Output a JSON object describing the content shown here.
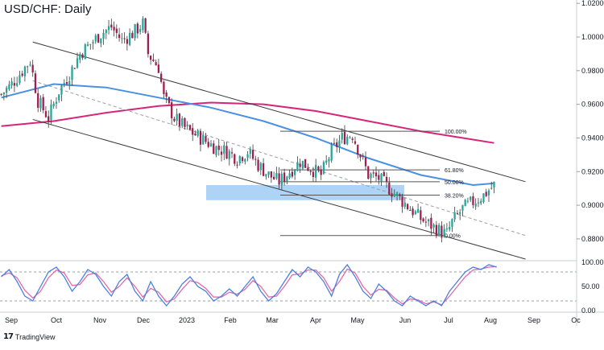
{
  "title": "USD/CHF: Daily",
  "branding": {
    "logo_icon": "tradingview-logo-icon",
    "text": "TradingView"
  },
  "colors": {
    "candle_up": "#26a69a",
    "candle_down": "#9c1f4f",
    "candle_wick": "#3a3a3a",
    "sma_fast": "#4a90e2",
    "sma_slow": "#d6257a",
    "channel": "#3a3a3a",
    "midline": "#9aa0a6",
    "support_zone": "#9fcdf5",
    "fib": "#555555",
    "stoch_k": "#4a7fe0",
    "stoch_d": "#e26aa8"
  },
  "chart_data": [
    {
      "type": "candlestick",
      "title": "USD/CHF: Daily",
      "x_ticks": [
        "Sep",
        "Oct",
        "Nov",
        "Dec",
        "2023",
        "Feb",
        "Mar",
        "Apr",
        "May",
        "Jun",
        "Jul",
        "Aug",
        "Sep",
        "Oc"
      ],
      "y_ticks": [
        "1.02000",
        "1.00000",
        "0.98000",
        "0.96000",
        "0.94000",
        "0.92000",
        "0.90000",
        "0.88000"
      ],
      "ylim": [
        0.868,
        1.022
      ],
      "price_path": [
        [
          0,
          0.966
        ],
        [
          4,
          0.972
        ],
        [
          8,
          0.98
        ],
        [
          11,
          0.986
        ],
        [
          14,
          0.962
        ],
        [
          18,
          0.952
        ],
        [
          22,
          0.968
        ],
        [
          26,
          0.978
        ],
        [
          30,
          0.99
        ],
        [
          34,
          0.996
        ],
        [
          38,
          1.002
        ],
        [
          42,
          1.006
        ],
        [
          46,
          0.998
        ],
        [
          50,
          1.002
        ],
        [
          54,
          1.008
        ],
        [
          56,
          0.99
        ],
        [
          60,
          0.982
        ],
        [
          62,
          0.964
        ],
        [
          66,
          0.952
        ],
        [
          70,
          0.946
        ],
        [
          74,
          0.942
        ],
        [
          78,
          0.938
        ],
        [
          82,
          0.934
        ],
        [
          86,
          0.932
        ],
        [
          90,
          0.928
        ],
        [
          94,
          0.932
        ],
        [
          98,
          0.924
        ],
        [
          102,
          0.918
        ],
        [
          106,
          0.914
        ],
        [
          110,
          0.92
        ],
        [
          114,
          0.926
        ],
        [
          118,
          0.922
        ],
        [
          122,
          0.918
        ],
        [
          126,
          0.932
        ],
        [
          130,
          0.94
        ],
        [
          134,
          0.942
        ],
        [
          136,
          0.934
        ],
        [
          140,
          0.918
        ],
        [
          144,
          0.916
        ],
        [
          148,
          0.91
        ],
        [
          152,
          0.904
        ],
        [
          156,
          0.898
        ],
        [
          160,
          0.892
        ],
        [
          164,
          0.888
        ],
        [
          168,
          0.884
        ],
        [
          170,
          0.883
        ],
        [
          172,
          0.89
        ],
        [
          176,
          0.898
        ],
        [
          180,
          0.902
        ],
        [
          184,
          0.906
        ],
        [
          188,
          0.912
        ]
      ],
      "sma_fast_path": [
        [
          0,
          0.964
        ],
        [
          20,
          0.972
        ],
        [
          40,
          0.97
        ],
        [
          60,
          0.964
        ],
        [
          80,
          0.958
        ],
        [
          100,
          0.95
        ],
        [
          120,
          0.94
        ],
        [
          140,
          0.928
        ],
        [
          160,
          0.918
        ],
        [
          180,
          0.912
        ],
        [
          188,
          0.913
        ]
      ],
      "sma_slow_path": [
        [
          0,
          0.947
        ],
        [
          20,
          0.95
        ],
        [
          40,
          0.955
        ],
        [
          60,
          0.959
        ],
        [
          80,
          0.961
        ],
        [
          100,
          0.96
        ],
        [
          120,
          0.956
        ],
        [
          140,
          0.95
        ],
        [
          160,
          0.944
        ],
        [
          180,
          0.939
        ],
        [
          188,
          0.937
        ]
      ],
      "channel_upper": [
        [
          12,
          0.997
        ],
        [
          200,
          0.914
        ]
      ],
      "channel_lower": [
        [
          12,
          0.951
        ],
        [
          200,
          0.868
        ]
      ],
      "channel_mid": [
        [
          12,
          0.974
        ],
        [
          200,
          0.882
        ]
      ],
      "support_zone": {
        "x": [
          97,
          190
        ],
        "y": [
          0.903,
          0.912
        ]
      },
      "fib_levels": [
        {
          "label": "100.00%",
          "value": 0.944
        },
        {
          "label": "61.80%",
          "value": 0.921
        },
        {
          "label": "50.00%",
          "value": 0.914
        },
        {
          "label": "38.20%",
          "value": 0.906
        },
        {
          "label": "0.00%",
          "value": 0.882
        }
      ]
    },
    {
      "type": "line",
      "title": "",
      "y_ticks": [
        "100.00",
        "50.00",
        "0.00"
      ],
      "ylim": [
        0,
        100
      ],
      "levels": [
        80,
        20
      ],
      "k_path": [
        [
          0,
          70
        ],
        [
          3,
          85
        ],
        [
          6,
          60
        ],
        [
          9,
          30
        ],
        [
          12,
          20
        ],
        [
          15,
          50
        ],
        [
          18,
          80
        ],
        [
          21,
          90
        ],
        [
          24,
          70
        ],
        [
          27,
          40
        ],
        [
          30,
          60
        ],
        [
          33,
          85
        ],
        [
          36,
          75
        ],
        [
          39,
          50
        ],
        [
          42,
          30
        ],
        [
          45,
          60
        ],
        [
          48,
          75
        ],
        [
          51,
          40
        ],
        [
          54,
          20
        ],
        [
          57,
          60
        ],
        [
          60,
          30
        ],
        [
          63,
          10
        ],
        [
          66,
          30
        ],
        [
          69,
          55
        ],
        [
          72,
          70
        ],
        [
          75,
          50
        ],
        [
          78,
          40
        ],
        [
          81,
          20
        ],
        [
          84,
          30
        ],
        [
          87,
          45
        ],
        [
          90,
          30
        ],
        [
          93,
          50
        ],
        [
          96,
          70
        ],
        [
          99,
          40
        ],
        [
          102,
          20
        ],
        [
          105,
          35
        ],
        [
          108,
          60
        ],
        [
          111,
          85
        ],
        [
          114,
          70
        ],
        [
          117,
          90
        ],
        [
          120,
          80
        ],
        [
          123,
          60
        ],
        [
          126,
          30
        ],
        [
          129,
          75
        ],
        [
          132,
          95
        ],
        [
          135,
          70
        ],
        [
          138,
          40
        ],
        [
          141,
          25
        ],
        [
          144,
          55
        ],
        [
          147,
          40
        ],
        [
          150,
          20
        ],
        [
          153,
          10
        ],
        [
          156,
          30
        ],
        [
          159,
          20
        ],
        [
          162,
          10
        ],
        [
          165,
          20
        ],
        [
          168,
          10
        ],
        [
          171,
          40
        ],
        [
          174,
          60
        ],
        [
          177,
          80
        ],
        [
          180,
          90
        ],
        [
          183,
          85
        ],
        [
          186,
          95
        ],
        [
          189,
          90
        ]
      ],
      "d_path": [
        [
          0,
          72
        ],
        [
          3,
          78
        ],
        [
          6,
          68
        ],
        [
          9,
          42
        ],
        [
          12,
          26
        ],
        [
          15,
          40
        ],
        [
          18,
          68
        ],
        [
          21,
          84
        ],
        [
          24,
          78
        ],
        [
          27,
          52
        ],
        [
          30,
          54
        ],
        [
          33,
          74
        ],
        [
          36,
          78
        ],
        [
          39,
          60
        ],
        [
          42,
          38
        ],
        [
          45,
          50
        ],
        [
          48,
          68
        ],
        [
          51,
          50
        ],
        [
          54,
          28
        ],
        [
          57,
          46
        ],
        [
          60,
          38
        ],
        [
          63,
          18
        ],
        [
          66,
          24
        ],
        [
          69,
          44
        ],
        [
          72,
          62
        ],
        [
          75,
          58
        ],
        [
          78,
          46
        ],
        [
          81,
          28
        ],
        [
          84,
          28
        ],
        [
          87,
          38
        ],
        [
          90,
          34
        ],
        [
          93,
          44
        ],
        [
          96,
          62
        ],
        [
          99,
          50
        ],
        [
          102,
          28
        ],
        [
          105,
          30
        ],
        [
          108,
          50
        ],
        [
          111,
          74
        ],
        [
          114,
          76
        ],
        [
          117,
          84
        ],
        [
          120,
          84
        ],
        [
          123,
          68
        ],
        [
          126,
          40
        ],
        [
          129,
          60
        ],
        [
          132,
          86
        ],
        [
          135,
          78
        ],
        [
          138,
          50
        ],
        [
          141,
          32
        ],
        [
          144,
          44
        ],
        [
          147,
          42
        ],
        [
          150,
          26
        ],
        [
          153,
          14
        ],
        [
          156,
          24
        ],
        [
          159,
          22
        ],
        [
          162,
          14
        ],
        [
          165,
          18
        ],
        [
          168,
          12
        ],
        [
          171,
          30
        ],
        [
          174,
          50
        ],
        [
          177,
          70
        ],
        [
          180,
          84
        ],
        [
          183,
          86
        ],
        [
          186,
          90
        ],
        [
          189,
          91
        ]
      ]
    }
  ]
}
